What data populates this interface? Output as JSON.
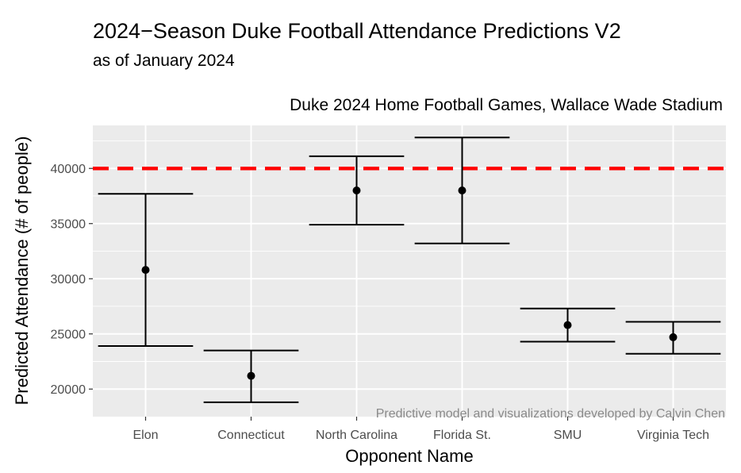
{
  "chart_data": {
    "type": "scatter",
    "title": "2024−Season Duke Football Attendance Predictions V2",
    "subtitle": "as of January 2024",
    "panel_label": "Duke 2024 Home Football Games, Wallace Wade Stadium",
    "xlabel": "Opponent Name",
    "ylabel": "Predicted Attendance (# of people)",
    "caption": "Predictive model and visualizations developed by Calvin Chen",
    "categories": [
      "Elon",
      "Connecticut",
      "North Carolina",
      "Florida St.",
      "SMU",
      "Virginia Tech"
    ],
    "series": [
      {
        "values": [
          30800,
          21200,
          38000,
          38000,
          25800,
          24700
        ],
        "lower": [
          23900,
          18800,
          34900,
          33200,
          24300,
          23200
        ],
        "upper": [
          37700,
          23500,
          41100,
          42800,
          27300,
          26100
        ]
      }
    ],
    "reference_line": {
      "y": 40000,
      "color": "#ff0000",
      "style": "dashed"
    },
    "ylim": [
      17500,
      43900
    ],
    "yticks": [
      20000,
      25000,
      30000,
      35000,
      40000
    ],
    "ytick_labels": [
      "20000",
      "25000",
      "30000",
      "35000",
      "40000"
    ],
    "grid": true,
    "colors": {
      "panel_background": "#ebebeb",
      "grid": "#ffffff",
      "marks": "#000000",
      "reference": "#ff0000"
    }
  }
}
